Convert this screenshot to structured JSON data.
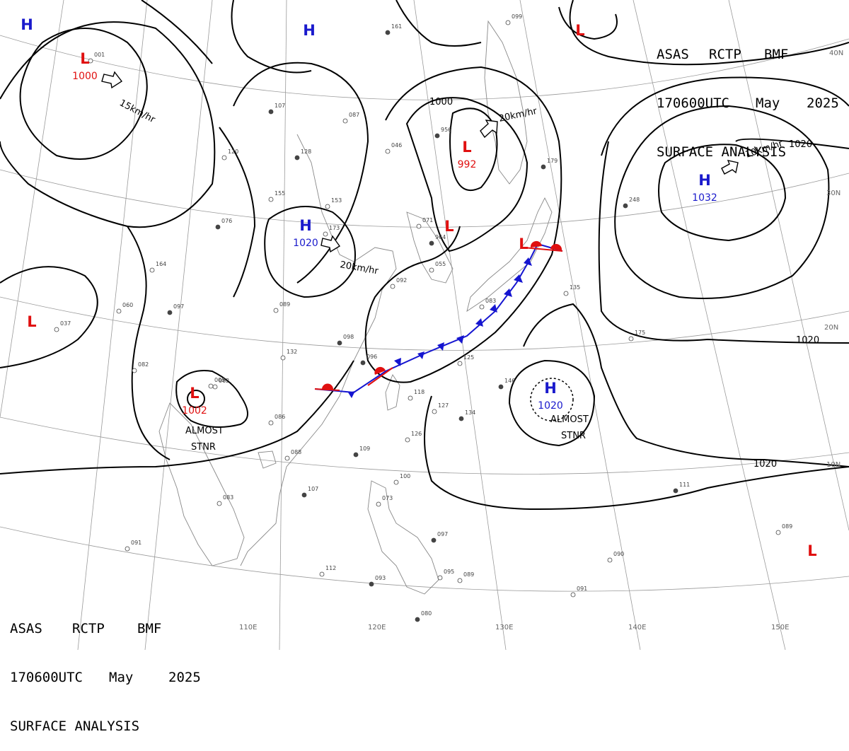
{
  "header": {
    "line1": [
      "ASAS",
      "RCTP",
      "BMF"
    ],
    "line2": [
      "170600UTC",
      "May",
      "2025"
    ],
    "line3": "SURFACE ANALYSIS"
  },
  "lat_labels": [
    "40N",
    "30N",
    "20N",
    "10N"
  ],
  "lon_labels": [
    "110E",
    "120E",
    "130E",
    "140E",
    "150E"
  ],
  "isobar_labels": [
    "1000",
    "1020",
    "1020",
    "1020"
  ],
  "pressure_centers": [
    {
      "type": "H",
      "value": "",
      "color": "#1a1acc"
    },
    {
      "type": "H",
      "value": "",
      "color": "#1a1acc"
    },
    {
      "type": "L",
      "value": "",
      "color": "#e01010"
    },
    {
      "type": "L",
      "value": "1000",
      "color": "#e01010"
    },
    {
      "type": "H",
      "value": "1020",
      "color": "#1a1acc"
    },
    {
      "type": "L",
      "value": "992",
      "color": "#e01010"
    },
    {
      "type": "L",
      "value": "",
      "color": "#e01010"
    },
    {
      "type": "L",
      "value": "",
      "color": "#e01010"
    },
    {
      "type": "H",
      "value": "1032",
      "color": "#1a1acc"
    },
    {
      "type": "L",
      "value": "",
      "color": "#e01010"
    },
    {
      "type": "L",
      "value": "1002",
      "color": "#e01010"
    },
    {
      "type": "H",
      "value": "1020",
      "color": "#1a1acc"
    },
    {
      "type": "L",
      "value": "",
      "color": "#e01010"
    }
  ],
  "motion_labels": [
    "15km/hr",
    "20km/hr",
    "20km/hr",
    "10km/hr"
  ],
  "annotations": [
    "ALMOST",
    "STNR",
    "ALMOST",
    "STNR"
  ],
  "stations": [
    "161",
    "099",
    "001",
    "107",
    "087",
    "046",
    "956",
    "120",
    "155",
    "128",
    "153",
    "173",
    "076",
    "164",
    "060",
    "097",
    "089",
    "082",
    "096",
    "132",
    "125",
    "146",
    "092",
    "071",
    "964",
    "055",
    "083",
    "179",
    "135",
    "175",
    "248",
    "118",
    "127",
    "134",
    "086",
    "088",
    "109",
    "126",
    "083",
    "107",
    "100",
    "073",
    "097",
    "091",
    "112",
    "093",
    "095",
    "089",
    "080",
    "090",
    "091",
    "111",
    "089",
    "037",
    "098",
    "062",
    "005"
  ],
  "colors": {
    "cold_front": "#1515d0",
    "warm_front": "#e01010",
    "low": "#e01010",
    "high": "#1a1acc"
  }
}
